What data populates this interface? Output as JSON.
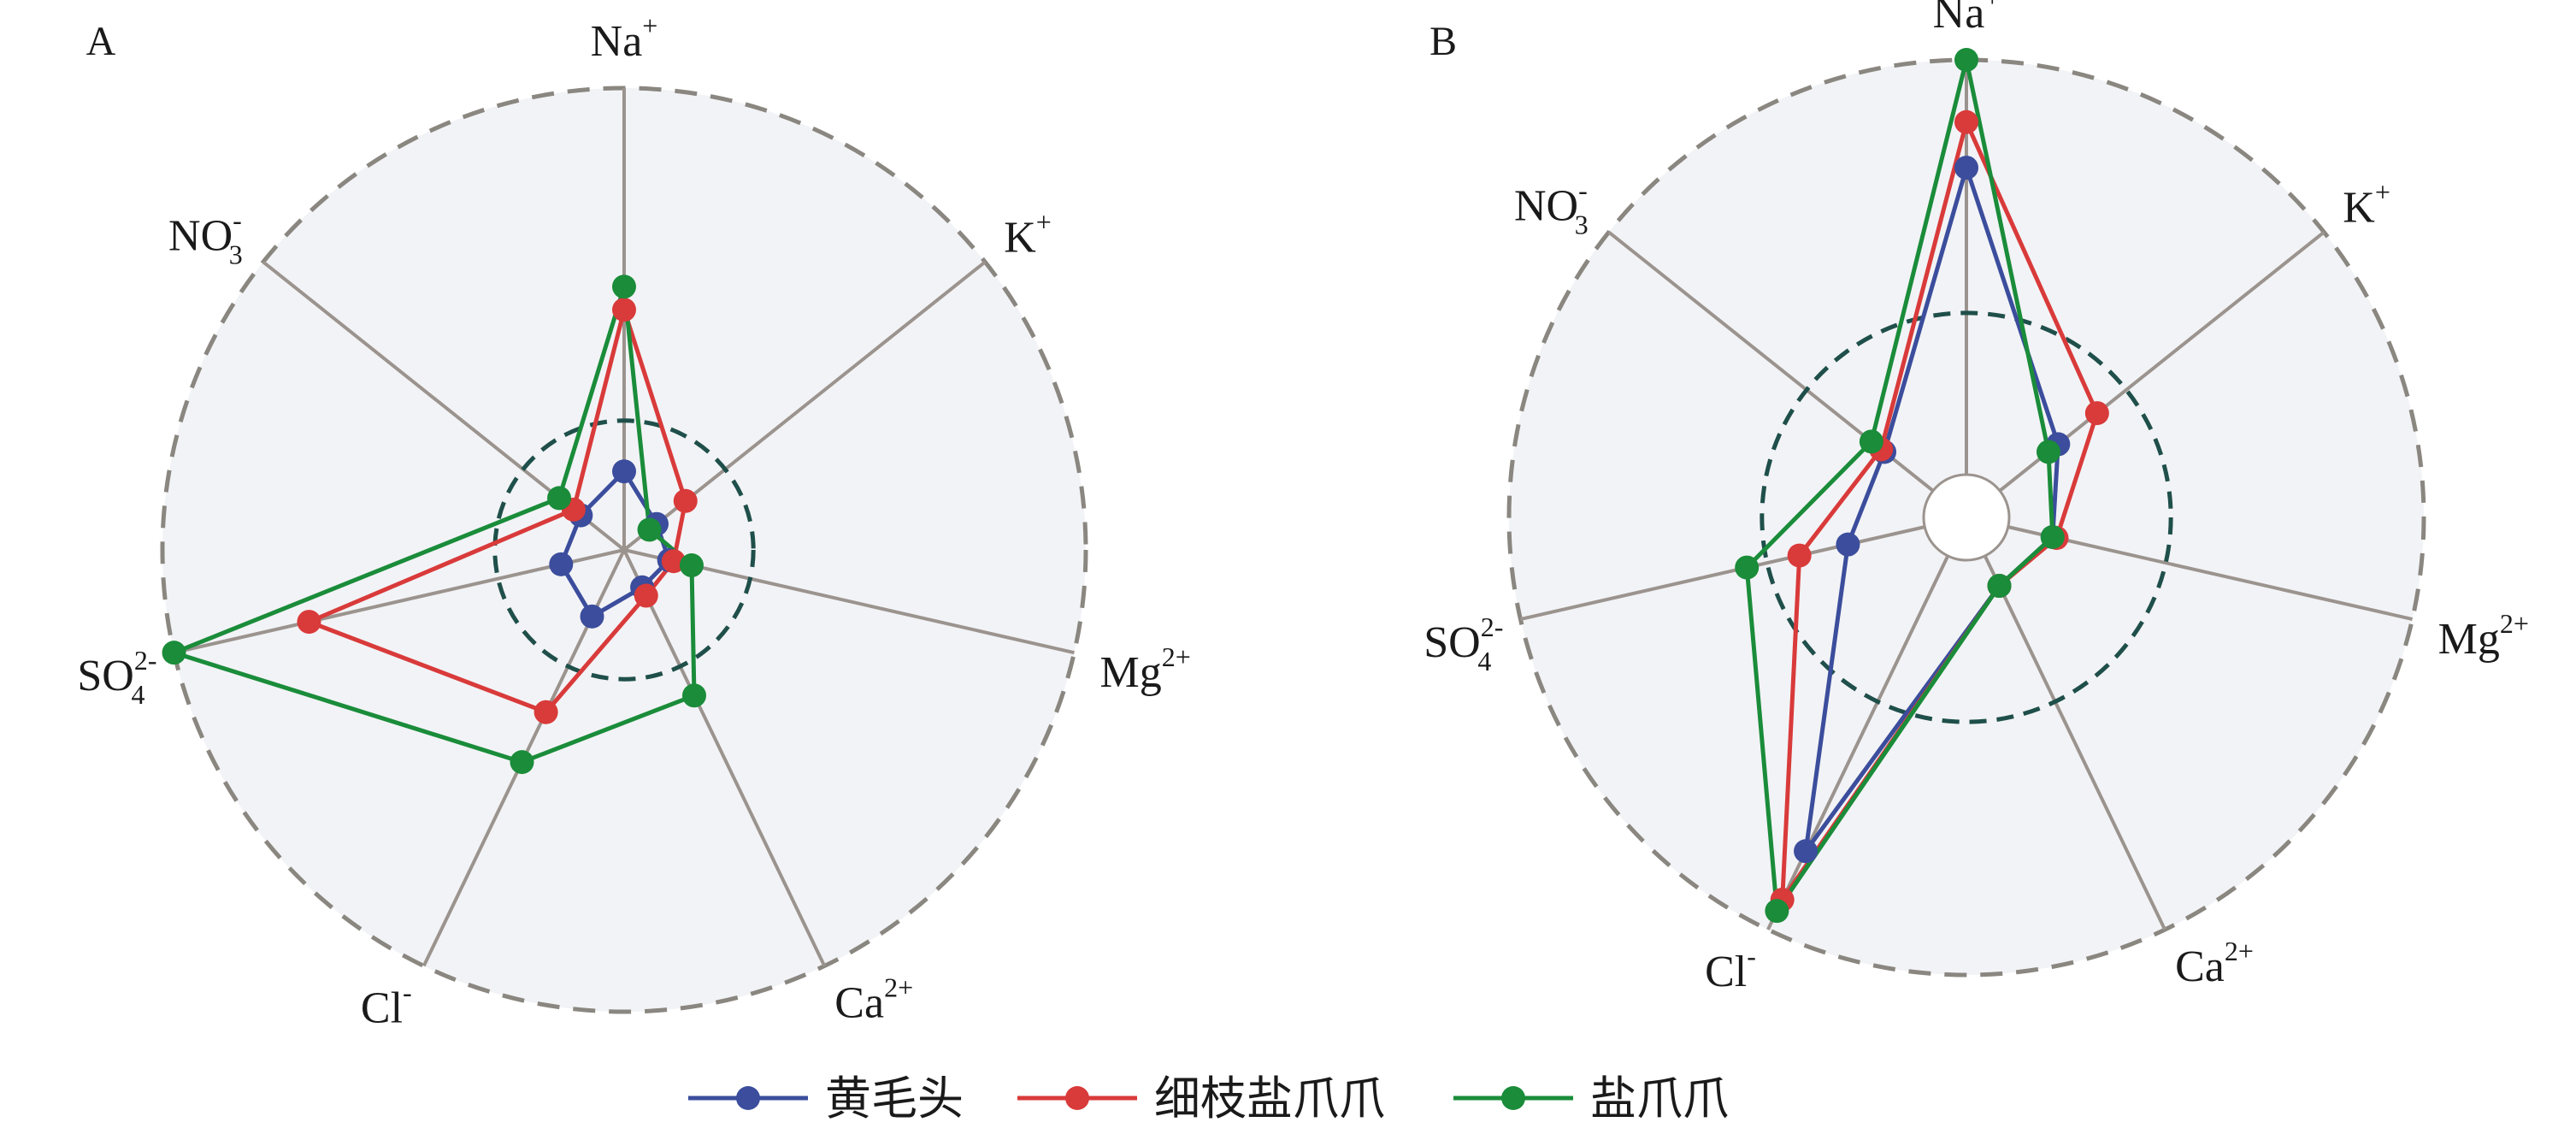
{
  "chart_data": [
    {
      "type": "radar",
      "panel_label": "A",
      "axes": [
        {
          "id": "na",
          "base": "Na",
          "sup": "+",
          "sub": ""
        },
        {
          "id": "k",
          "base": "K",
          "sup": "+",
          "sub": ""
        },
        {
          "id": "mg",
          "base": "Mg",
          "sup": "2+",
          "sub": ""
        },
        {
          "id": "ca",
          "base": "Ca",
          "sup": "2+",
          "sub": ""
        },
        {
          "id": "cl",
          "base": "Cl",
          "sup": "-",
          "sub": ""
        },
        {
          "id": "so4",
          "base": "SO",
          "sup": "2-",
          "sub": "4"
        },
        {
          "id": "no3",
          "base": "NO",
          "sup": "-",
          "sub": "3"
        }
      ],
      "rlim": [
        0,
        1
      ],
      "reference_ring": 0.28,
      "series": [
        {
          "name": "黄毛头",
          "color": "#3b4d9c",
          "values": [
            0.17,
            0.09,
            0.1,
            0.09,
            0.16,
            0.14,
            0.12
          ]
        },
        {
          "name": "细枝盐爪爪",
          "color": "#d93a3a",
          "values": [
            0.52,
            0.17,
            0.11,
            0.11,
            0.39,
            0.7,
            0.14
          ]
        },
        {
          "name": "盐爪爪",
          "color": "#1a8c3a",
          "values": [
            0.57,
            0.07,
            0.15,
            0.35,
            0.51,
            1.0,
            0.18
          ]
        }
      ]
    },
    {
      "type": "radar",
      "panel_label": "B",
      "axes": [
        {
          "id": "na",
          "base": "Na",
          "sup": "+",
          "sub": ""
        },
        {
          "id": "k",
          "base": "K",
          "sup": "+",
          "sub": ""
        },
        {
          "id": "mg",
          "base": "Mg",
          "sup": "2+",
          "sub": ""
        },
        {
          "id": "ca",
          "base": "Ca",
          "sup": "2+",
          "sub": ""
        },
        {
          "id": "cl",
          "base": "Cl",
          "sup": "-",
          "sub": ""
        },
        {
          "id": "so4",
          "base": "SO",
          "sup": "2-",
          "sub": "4"
        },
        {
          "id": "no3",
          "base": "NO",
          "sup": "-",
          "sub": "3"
        }
      ],
      "rlim": [
        0,
        1
      ],
      "reference_ring": 0.39,
      "series": [
        {
          "name": "黄毛头",
          "color": "#3b4d9c",
          "values": [
            0.74,
            0.18,
            0.11,
            0.08,
            0.79,
            0.19,
            0.15
          ]
        },
        {
          "name": "细枝盐爪爪",
          "color": "#d93a3a",
          "values": [
            0.85,
            0.3,
            0.12,
            0.08,
            0.92,
            0.31,
            0.16
          ]
        },
        {
          "name": "盐爪爪",
          "color": "#1a8c3a",
          "values": [
            1.0,
            0.15,
            0.11,
            0.08,
            0.95,
            0.44,
            0.19
          ]
        }
      ]
    }
  ],
  "legend": [
    {
      "name": "黄毛头",
      "color": "#3b4d9c"
    },
    {
      "name": "细枝盐爪爪",
      "color": "#d93a3a"
    },
    {
      "name": "盐爪爪",
      "color": "#1a8c3a"
    }
  ],
  "colors": {
    "disc_fill": "#f2f3f6",
    "outer_ring": "#8a8680",
    "spoke": "#9b938e",
    "reference_ring": "#1f4f4a"
  }
}
